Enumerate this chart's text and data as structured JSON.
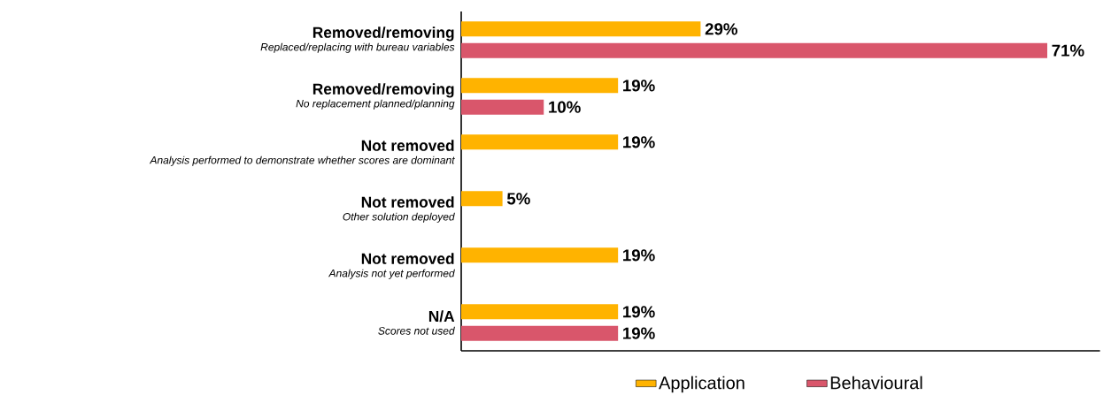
{
  "chart_data": {
    "type": "bar",
    "orientation": "horizontal",
    "legend": "bottom",
    "categories": [
      "**Removed/removing** *Replaced/replacing with bureau variables*",
      "**Removed/removing** *No replacement planned/planning*",
      "**Not removed** *Analysis performed to demonstrate whether scores are dominant*",
      "**Not removed** *Other solution deployed*",
      "**Not removed** *Analysis not yet performed*",
      "**N/A** *Scores not used*"
    ],
    "series": [
      {
        "name": "Application",
        "color": "#ffb300",
        "values": [
          29,
          19,
          19,
          5,
          19,
          19
        ],
        "value_labels": [
          "29%",
          "19%",
          "19%",
          "5%",
          "19%",
          "19%"
        ]
      },
      {
        "name": "Behavioural",
        "color": "#d9566b",
        "values": [
          71,
          10,
          null,
          null,
          null,
          19
        ],
        "value_labels": [
          "71%",
          "10%",
          null,
          null,
          null,
          "19%"
        ]
      }
    ]
  }
}
